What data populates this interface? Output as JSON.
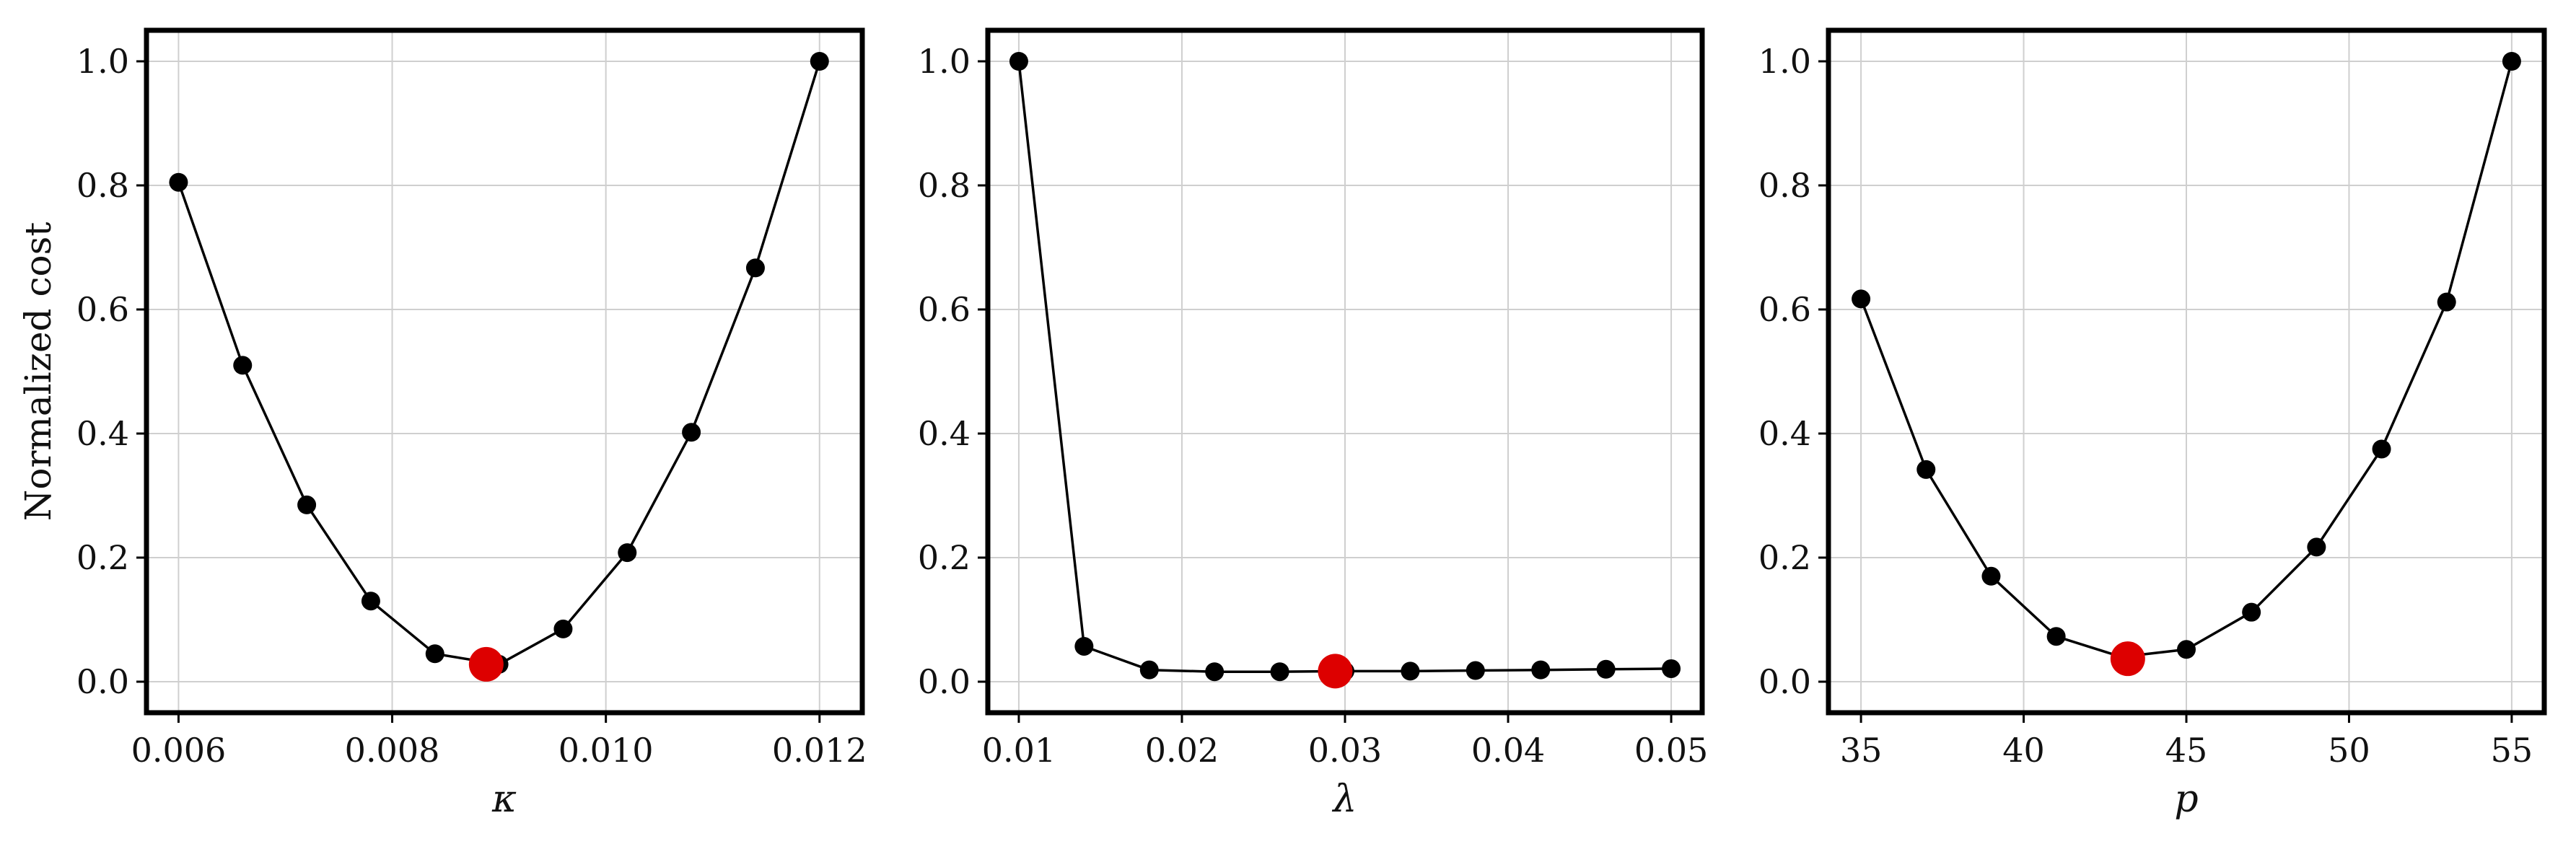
{
  "chart_data": [
    {
      "type": "line",
      "xlabel": "κ",
      "ylabel": "Normalized cost",
      "xlim": [
        0.0057,
        0.0124
      ],
      "ylim": [
        -0.05,
        1.05
      ],
      "xticks": [
        0.006,
        0.008,
        0.01,
        0.012
      ],
      "xtick_labels": [
        "0.006",
        "0.008",
        "0.010",
        "0.012"
      ],
      "yticks": [
        0.0,
        0.2,
        0.4,
        0.6,
        0.8,
        1.0
      ],
      "ytick_labels": [
        "0.0",
        "0.2",
        "0.4",
        "0.6",
        "0.8",
        "1.0"
      ],
      "grid": true,
      "x": [
        0.006,
        0.0066,
        0.0072,
        0.0078,
        0.0084,
        0.009,
        0.0096,
        0.0102,
        0.0108,
        0.0114,
        0.012
      ],
      "y": [
        0.805,
        0.51,
        0.285,
        0.13,
        0.045,
        0.028,
        0.085,
        0.208,
        0.402,
        0.667,
        1.0
      ],
      "optimum": {
        "x": 0.00888,
        "y": 0.028,
        "color": "#dd0000"
      }
    },
    {
      "type": "line",
      "xlabel": "λ",
      "ylabel": "",
      "xlim": [
        0.0081,
        0.0519
      ],
      "ylim": [
        -0.05,
        1.05
      ],
      "xticks": [
        0.01,
        0.02,
        0.03,
        0.04,
        0.05
      ],
      "xtick_labels": [
        "0.01",
        "0.02",
        "0.03",
        "0.04",
        "0.05"
      ],
      "yticks": [
        0.0,
        0.2,
        0.4,
        0.6,
        0.8,
        1.0
      ],
      "ytick_labels": [
        "0.0",
        "0.2",
        "0.4",
        "0.6",
        "0.8",
        "1.0"
      ],
      "grid": true,
      "x": [
        0.01,
        0.014,
        0.018,
        0.022,
        0.026,
        0.03,
        0.034,
        0.038,
        0.042,
        0.046,
        0.05
      ],
      "y": [
        1.0,
        0.057,
        0.019,
        0.016,
        0.016,
        0.017,
        0.017,
        0.018,
        0.019,
        0.02,
        0.021
      ],
      "optimum": {
        "x": 0.0294,
        "y": 0.017,
        "color": "#dd0000"
      }
    },
    {
      "type": "line",
      "xlabel": "p",
      "ylabel": "",
      "xlim": [
        34.0,
        56.0
      ],
      "ylim": [
        -0.05,
        1.05
      ],
      "xticks": [
        35,
        40,
        45,
        50,
        55
      ],
      "xtick_labels": [
        "35",
        "40",
        "45",
        "50",
        "55"
      ],
      "yticks": [
        0.0,
        0.2,
        0.4,
        0.6,
        0.8,
        1.0
      ],
      "ytick_labels": [
        "0.0",
        "0.2",
        "0.4",
        "0.6",
        "0.8",
        "1.0"
      ],
      "grid": true,
      "x": [
        35,
        37,
        39,
        41,
        43,
        45,
        47,
        49,
        51,
        53,
        55
      ],
      "y": [
        0.617,
        0.342,
        0.17,
        0.073,
        0.04,
        0.052,
        0.112,
        0.217,
        0.375,
        0.612,
        1.0
      ],
      "optimum": {
        "x": 43.2,
        "y": 0.037,
        "color": "#dd0000"
      }
    }
  ]
}
